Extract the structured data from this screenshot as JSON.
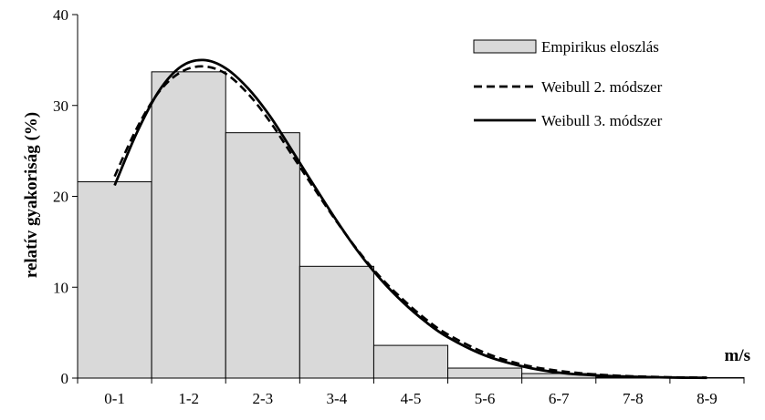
{
  "chart_data": {
    "type": "bar",
    "categories": [
      "0-1",
      "1-2",
      "2-3",
      "3-4",
      "4-5",
      "5-6",
      "6-7",
      "7-8",
      "8-9"
    ],
    "xlabel": "m/s",
    "ylabel": "relatív gyakoriság (%)",
    "ylim": [
      0,
      40
    ],
    "yticks": [
      0,
      10,
      20,
      30,
      40
    ],
    "grid": false,
    "legend_position": "top-right",
    "series": [
      {
        "name": "Empirikus eloszlás",
        "kind": "bar",
        "color": "#d9d9d9",
        "values": [
          21.6,
          33.7,
          27.0,
          12.3,
          3.6,
          1.1,
          0.5,
          0.1,
          0.05
        ]
      },
      {
        "name": "Weibull 2. módszer",
        "kind": "line",
        "style": "dashed",
        "color": "#000000",
        "x": [
          0.5,
          0.8,
          1.1,
          1.4,
          1.7,
          2.0,
          2.3,
          2.6,
          2.9,
          3.2,
          3.5,
          3.8,
          4.1,
          4.4,
          4.7,
          5.0,
          5.5,
          6.0,
          6.5,
          7.0,
          7.5,
          8.0,
          8.5
        ],
        "y": [
          22.2,
          27.5,
          31.5,
          33.7,
          34.3,
          33.5,
          31.3,
          28.2,
          24.5,
          20.8,
          17.2,
          13.9,
          11.0,
          8.6,
          6.5,
          4.8,
          2.8,
          1.5,
          0.8,
          0.4,
          0.2,
          0.1,
          0.05
        ]
      },
      {
        "name": "Weibull 3. módszer",
        "kind": "line",
        "style": "solid",
        "color": "#000000",
        "x": [
          0.5,
          0.8,
          1.1,
          1.4,
          1.7,
          2.0,
          2.3,
          2.6,
          2.9,
          3.2,
          3.5,
          3.8,
          4.1,
          4.4,
          4.7,
          5.0,
          5.5,
          6.0,
          6.5,
          7.0,
          7.5,
          8.0,
          8.5
        ],
        "y": [
          21.2,
          27.0,
          31.6,
          34.3,
          35.0,
          34.1,
          31.9,
          28.8,
          25.0,
          21.1,
          17.3,
          13.8,
          10.8,
          8.3,
          6.2,
          4.5,
          2.5,
          1.3,
          0.6,
          0.3,
          0.15,
          0.06,
          0.03
        ]
      }
    ]
  }
}
